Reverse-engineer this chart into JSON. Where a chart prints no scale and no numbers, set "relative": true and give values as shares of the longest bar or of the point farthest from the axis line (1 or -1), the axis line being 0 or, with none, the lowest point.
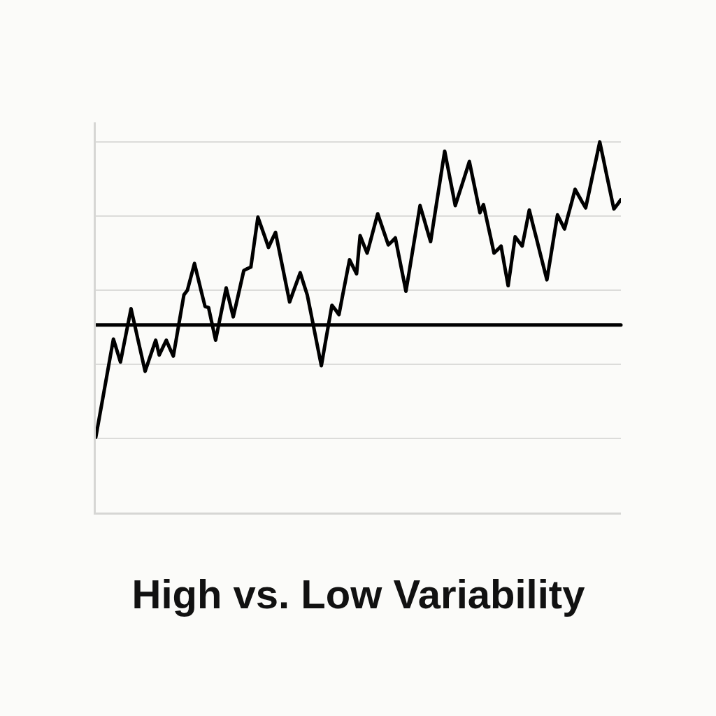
{
  "chart_data": {
    "type": "line",
    "title": "High vs. Low Variability",
    "categories": [
      null,
      null,
      null,
      null,
      null,
      null,
      null,
      null,
      null,
      null,
      null,
      null,
      null,
      null,
      null,
      null,
      null,
      null,
      null,
      null,
      null,
      null,
      null,
      null,
      null,
      null,
      null,
      null,
      null,
      null,
      null,
      null,
      null,
      null,
      null,
      null,
      null,
      null,
      null,
      null,
      null,
      null,
      null,
      null,
      null,
      null,
      null,
      null,
      null,
      null,
      null,
      null,
      null,
      null,
      null,
      null,
      null,
      null,
      null,
      null,
      null,
      null,
      null,
      null,
      null,
      null,
      null,
      null,
      null,
      null,
      null,
      null,
      null,
      null,
      null,
      null,
      null,
      null,
      null,
      null,
      null,
      null,
      null,
      null,
      null,
      null,
      null,
      null,
      null,
      null,
      null,
      null,
      null,
      null,
      null,
      null,
      null,
      null,
      null,
      null,
      null,
      null,
      null,
      null,
      null,
      null,
      null,
      null,
      null,
      null,
      null,
      null,
      null,
      null,
      null,
      null,
      null,
      null,
      null,
      null,
      null,
      null,
      null,
      null,
      null,
      null,
      null,
      null,
      null,
      null,
      null,
      null,
      null,
      null,
      null,
      null,
      null,
      null,
      null,
      null,
      null,
      null,
      null,
      null,
      null,
      null,
      null,
      null,
      null,
      null
    ],
    "series": [
      {
        "color": "#000000",
        "values": [
          0.203,
          0.256,
          0.309,
          0.362,
          0.415,
          0.468,
          0.437,
          0.406,
          0.454,
          0.502,
          0.55,
          0.508,
          0.465,
          0.423,
          0.381,
          0.409,
          0.437,
          0.465,
          0.425,
          0.445,
          0.465,
          0.443,
          0.422,
          0.477,
          0.532,
          0.587,
          0.6,
          0.636,
          0.672,
          0.633,
          0.594,
          0.556,
          0.553,
          0.509,
          0.465,
          0.512,
          0.559,
          0.606,
          0.567,
          0.528,
          0.569,
          0.611,
          0.653,
          0.658,
          0.662,
          0.73,
          0.797,
          0.77,
          0.743,
          0.715,
          0.736,
          0.756,
          0.709,
          0.662,
          0.615,
          0.568,
          0.595,
          0.621,
          0.647,
          0.617,
          0.587,
          0.54,
          0.492,
          0.444,
          0.396,
          0.451,
          0.505,
          0.559,
          0.547,
          0.534,
          0.584,
          0.633,
          0.682,
          0.663,
          0.644,
          0.747,
          0.723,
          0.7,
          0.735,
          0.771,
          0.806,
          0.778,
          0.75,
          0.722,
          0.731,
          0.741,
          0.693,
          0.645,
          0.597,
          0.654,
          0.712,
          0.77,
          0.828,
          0.796,
          0.763,
          0.731,
          0.792,
          0.853,
          0.914,
          0.975,
          0.926,
          0.877,
          0.828,
          0.858,
          0.887,
          0.917,
          0.947,
          0.901,
          0.855,
          0.809,
          0.831,
          0.787,
          0.744,
          0.7,
          0.709,
          0.719,
          0.665,
          0.612,
          0.678,
          0.744,
          0.731,
          0.719,
          0.767,
          0.816,
          0.778,
          0.741,
          0.703,
          0.665,
          0.628,
          0.686,
          0.745,
          0.803,
          0.784,
          0.765,
          0.801,
          0.836,
          0.872,
          0.855,
          0.838,
          0.822,
          0.866,
          0.911,
          0.955,
          1.0,
          0.955,
          0.909,
          0.864,
          0.819,
          0.831,
          0.844
        ]
      }
    ],
    "relative": true,
    "ref_lines": [
      {
        "axis": "y",
        "value": 0.506,
        "color": "#000000"
      }
    ],
    "grid": "y"
  }
}
